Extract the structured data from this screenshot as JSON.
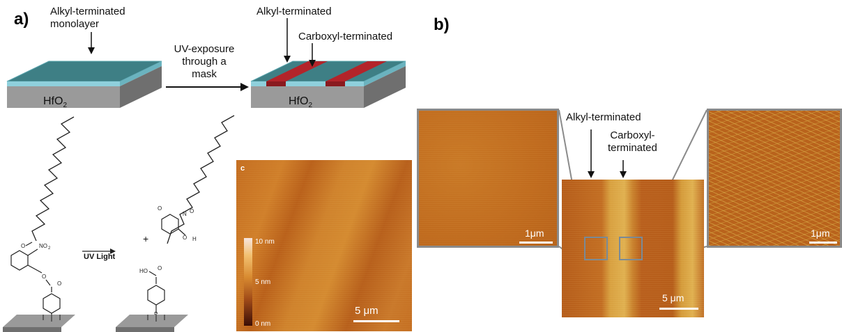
{
  "panel_a": {
    "label": "a)",
    "top_left_label_line1": "Alkyl-terminated",
    "top_left_label_line2": "monolayer",
    "substrate_label": "HfO",
    "substrate_sub": "2",
    "arrow_text_line1": "UV-exposure",
    "arrow_text_line2": "through a",
    "arrow_text_line3": "mask",
    "right_label_alkyl": "Alkyl-terminated",
    "right_label_carboxyl": "Carboxyl-terminated",
    "right_substrate_label": "HfO",
    "right_substrate_sub": "2",
    "chem_reaction_label": "UV Light",
    "chem_plus": "+",
    "chem_no2": "NO",
    "chem_no2_sub": "2",
    "chem_ho": "HO",
    "chem_h": "H",
    "afm_panel_letter": "c",
    "colorbar_top": "10 nm",
    "colorbar_mid": "5 nm",
    "colorbar_bottom": "0 nm",
    "scale_bar": "5 μm"
  },
  "panel_b": {
    "label": "b)",
    "label_alkyl": "Alkyl-terminated",
    "label_carboxyl_line1": "Carboxyl-",
    "label_carboxyl_line2": "terminated",
    "left_zoom_scale": "1μm",
    "right_zoom_scale": "1μm",
    "center_scale": "5 μm"
  },
  "colors": {
    "monolayer_teal": "#3e7f85",
    "monolayer_edge": "#8fd0dc",
    "substrate_gray": "#9a9a9a",
    "carboxyl_red": "#b3242a",
    "afm_orange": "#c8701c",
    "afm_dark": "#7a2f10",
    "afm_light": "#e8c060",
    "frame_gray": "#8a8a8a"
  }
}
